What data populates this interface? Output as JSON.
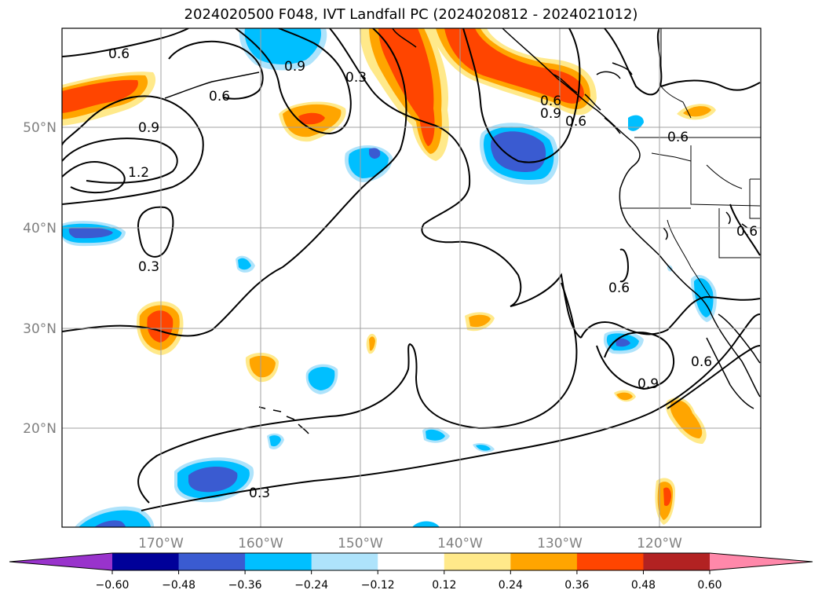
{
  "title": "2024020500 F048, IVT Landfall PC (2024020812 - 2024021012)",
  "map": {
    "lon_labels": [
      "170°W",
      "160°W",
      "150°W",
      "140°W",
      "130°W",
      "120°W"
    ],
    "lat_labels": [
      "50°N",
      "40°N",
      "30°N",
      "20°N"
    ],
    "contour_labels": [
      "0.6",
      "0.9",
      "0.3",
      "0.6",
      "0.9",
      "1.2",
      "0.3",
      "0.6",
      "0.6",
      "0.6",
      "0.6",
      "0.6",
      "0.9",
      "0.3",
      "0.9",
      "0.6"
    ]
  },
  "colorbar": {
    "colors": [
      "#9933cc",
      "#000099",
      "#3a5bd1",
      "#00bfff",
      "#aee3fb",
      "#ffffff",
      "#ffe98a",
      "#ffa500",
      "#ff4500",
      "#b22222",
      "#ff88aa"
    ],
    "ticks": [
      "−0.60",
      "−0.48",
      "−0.36",
      "−0.24",
      "−0.12",
      "0.12",
      "0.24",
      "0.36",
      "0.48",
      "0.60"
    ]
  }
}
